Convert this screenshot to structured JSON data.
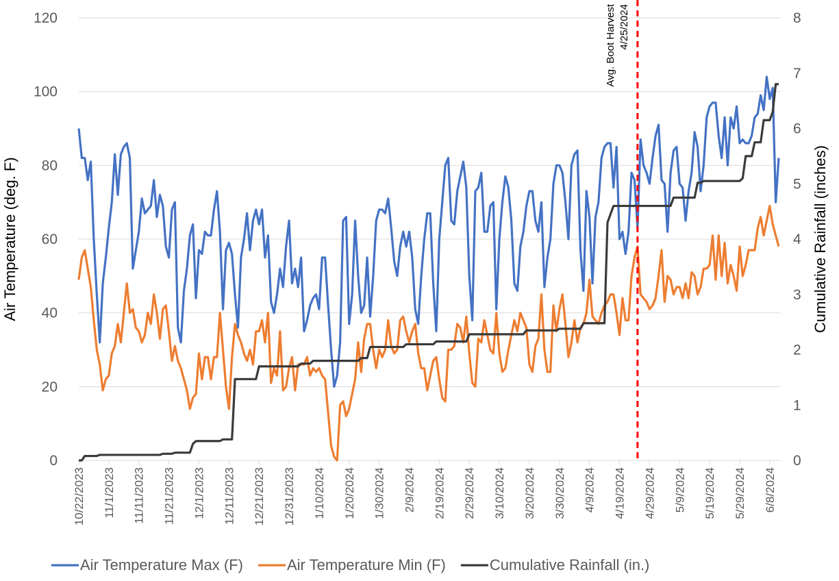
{
  "chart_data": {
    "type": "line",
    "categories": [
      "10/22/2023",
      null,
      null,
      null,
      null,
      null,
      null,
      null,
      null,
      null,
      "11/1/2023",
      null,
      null,
      null,
      null,
      null,
      null,
      null,
      null,
      null,
      "11/11/2023",
      null,
      null,
      null,
      null,
      null,
      null,
      null,
      null,
      null,
      "11/21/2023",
      null,
      null,
      null,
      null,
      null,
      null,
      null,
      null,
      null,
      "12/1/2023",
      null,
      null,
      null,
      null,
      null,
      null,
      null,
      null,
      null,
      "12/11/2023",
      null,
      null,
      null,
      null,
      null,
      null,
      null,
      null,
      null,
      "12/21/2023",
      null,
      null,
      null,
      null,
      null,
      null,
      null,
      null,
      null,
      "12/31/2023",
      null,
      null,
      null,
      null,
      null,
      null,
      null,
      null,
      null,
      "1/10/2024",
      null,
      null,
      null,
      null,
      null,
      null,
      null,
      null,
      null,
      "1/20/2024",
      null,
      null,
      null,
      null,
      null,
      null,
      null,
      null,
      null,
      "1/30/2024",
      null,
      null,
      null,
      null,
      null,
      null,
      null,
      null,
      null,
      "2/9/2024",
      null,
      null,
      null,
      null,
      null,
      null,
      null,
      null,
      null,
      "2/19/2024",
      null,
      null,
      null,
      null,
      null,
      null,
      null,
      null,
      null,
      "2/29/2024",
      null,
      null,
      null,
      null,
      null,
      null,
      null,
      null,
      null,
      "3/10/2024",
      null,
      null,
      null,
      null,
      null,
      null,
      null,
      null,
      null,
      "3/20/2024",
      null,
      null,
      null,
      null,
      null,
      null,
      null,
      null,
      null,
      "3/30/2024",
      null,
      null,
      null,
      null,
      null,
      null,
      null,
      null,
      null,
      "4/9/2024",
      null,
      null,
      null,
      null,
      null,
      null,
      null,
      null,
      null,
      "4/19/2024",
      null,
      null,
      null,
      null,
      null,
      null,
      null,
      null,
      null,
      "4/29/2024",
      null,
      null,
      null,
      null,
      null,
      null,
      null,
      null,
      null,
      "5/9/2024",
      null,
      null,
      null,
      null,
      null,
      null,
      null,
      null,
      null,
      "5/19/2024",
      null,
      null,
      null,
      null,
      null,
      null,
      null,
      null,
      null,
      "5/29/2024",
      null,
      null,
      null,
      null,
      null,
      null,
      null,
      null,
      null,
      "6/8/2024",
      null,
      null,
      null
    ],
    "series": [
      {
        "name": "Air Temperature Max (F)",
        "color": "#4472c4",
        "values": [
          90,
          82,
          82,
          76,
          81,
          60,
          45,
          32,
          48,
          55,
          63,
          70,
          83,
          72,
          83,
          85,
          86,
          82,
          52,
          57,
          62,
          71,
          67,
          68,
          69,
          76,
          66,
          72,
          69,
          58,
          55,
          68,
          70,
          36,
          32,
          46,
          52,
          61,
          64,
          44,
          57,
          56,
          62,
          61,
          61,
          68,
          73,
          62,
          41,
          57,
          59,
          56,
          45,
          36,
          55,
          60,
          67,
          57,
          65,
          68,
          64,
          68,
          55,
          61,
          43,
          40,
          45,
          52,
          47,
          58,
          65,
          48,
          52,
          47,
          55,
          35,
          38,
          42,
          44,
          45,
          41,
          55,
          55,
          42,
          30,
          20,
          23,
          32,
          65,
          66,
          37,
          45,
          65,
          50,
          40,
          42,
          55,
          39,
          50,
          65,
          68,
          68,
          67,
          71,
          63,
          54,
          50,
          58,
          62,
          58,
          62,
          55,
          41,
          37,
          50,
          60,
          67,
          67,
          48,
          35,
          60,
          70,
          80,
          82,
          65,
          64,
          73,
          77,
          81,
          74,
          50,
          38,
          73,
          74,
          78,
          62,
          62,
          69,
          70,
          41,
          60,
          70,
          77,
          74,
          65,
          48,
          46,
          58,
          62,
          69,
          73,
          73,
          65,
          62,
          70,
          47,
          55,
          60,
          75,
          80,
          80,
          78,
          70,
          60,
          80,
          83,
          84,
          57,
          46,
          73,
          66,
          48,
          66,
          70,
          82,
          85,
          86,
          86,
          74,
          85,
          60,
          62,
          56,
          62,
          78,
          76,
          63,
          87,
          80,
          78,
          75,
          82,
          88,
          91,
          76,
          75,
          62,
          78,
          84,
          85,
          75,
          74,
          65,
          73,
          78,
          89,
          85,
          73,
          80,
          93,
          96,
          97,
          97,
          88,
          82,
          93,
          80,
          93,
          90,
          96,
          86,
          87,
          86,
          86,
          88,
          93,
          94,
          99,
          95,
          104,
          98,
          101,
          70,
          82
        ]
      },
      {
        "name": "Air Temperature Min (F)",
        "color": "#ed7d31",
        "values": [
          49,
          55,
          57,
          52,
          47,
          38,
          30,
          26,
          19,
          22,
          23,
          29,
          31,
          37,
          32,
          40,
          48,
          40,
          41,
          36,
          35,
          32,
          34,
          40,
          37,
          45,
          40,
          33,
          41,
          42,
          35,
          27,
          31,
          27,
          25,
          22,
          19,
          14,
          17,
          18,
          29,
          22,
          28,
          28,
          22,
          28,
          28,
          40,
          30,
          20,
          14,
          28,
          37,
          34,
          32,
          29,
          27,
          30,
          26,
          35,
          35,
          38,
          32,
          40,
          21,
          25,
          23,
          35,
          19,
          20,
          25,
          28,
          19,
          26,
          26,
          26,
          28,
          23,
          25,
          24,
          25,
          23,
          22,
          13,
          4,
          1,
          0,
          15,
          16,
          12,
          14,
          18,
          22,
          32,
          24,
          33,
          37,
          37,
          30,
          25,
          30,
          28,
          30,
          38,
          31,
          29,
          30,
          38,
          39,
          35,
          32,
          35,
          37,
          29,
          25,
          25,
          19,
          23,
          27,
          28,
          22,
          17,
          16,
          30,
          30,
          31,
          37,
          36,
          32,
          39,
          29,
          21,
          20,
          33,
          32,
          38,
          34,
          30,
          29,
          40,
          29,
          24,
          25,
          30,
          34,
          38,
          35,
          40,
          38,
          36,
          26,
          24,
          31,
          33,
          45,
          30,
          24,
          24,
          42,
          35,
          41,
          45,
          37,
          28,
          32,
          38,
          32,
          36,
          37,
          40,
          49,
          39,
          38,
          37,
          40,
          42,
          43,
          45,
          45,
          40,
          34,
          44,
          38,
          38,
          50,
          55,
          58,
          45,
          44,
          43,
          41,
          42,
          44,
          50,
          57,
          43,
          50,
          49,
          45,
          47,
          47,
          44,
          48,
          44,
          51,
          50,
          45,
          47,
          52,
          52,
          53,
          61,
          49,
          61,
          50,
          59,
          48,
          53,
          50,
          46,
          58,
          50,
          53,
          57,
          57,
          57,
          63,
          66,
          61,
          65,
          69,
          64,
          61,
          58
        ]
      },
      {
        "name": "Cumulative Rainfall (in.)",
        "color": "#3a3a3a",
        "axis": "y2",
        "values": [
          0,
          0,
          0.08,
          0.08,
          0.08,
          0.08,
          0.08,
          0.1,
          0.1,
          0.1,
          0.1,
          0.1,
          0.1,
          0.1,
          0.1,
          0.1,
          0.1,
          0.1,
          0.1,
          0.1,
          0.1,
          0.1,
          0.1,
          0.1,
          0.1,
          0.1,
          0.1,
          0.1,
          0.12,
          0.12,
          0.12,
          0.12,
          0.14,
          0.14,
          0.14,
          0.14,
          0.14,
          0.14,
          0.3,
          0.35,
          0.35,
          0.35,
          0.35,
          0.35,
          0.35,
          0.35,
          0.35,
          0.35,
          0.38,
          0.38,
          0.38,
          0.38,
          1.47,
          1.47,
          1.47,
          1.47,
          1.47,
          1.47,
          1.47,
          1.47,
          1.7,
          1.7,
          1.7,
          1.7,
          1.7,
          1.7,
          1.7,
          1.7,
          1.7,
          1.7,
          1.7,
          1.7,
          1.7,
          1.7,
          1.75,
          1.75,
          1.75,
          1.75,
          1.8,
          1.8,
          1.8,
          1.8,
          1.8,
          1.8,
          1.8,
          1.8,
          1.8,
          1.8,
          1.8,
          1.8,
          1.8,
          1.8,
          1.8,
          1.8,
          1.85,
          1.85,
          1.85,
          2.05,
          2.05,
          2.05,
          2.05,
          2.05,
          2.05,
          2.05,
          2.05,
          2.05,
          2.05,
          2.05,
          2.05,
          2.1,
          2.1,
          2.1,
          2.1,
          2.1,
          2.1,
          2.1,
          2.1,
          2.1,
          2.1,
          2.15,
          2.15,
          2.15,
          2.15,
          2.15,
          2.15,
          2.15,
          2.15,
          2.15,
          2.15,
          2.15,
          2.28,
          2.28,
          2.28,
          2.28,
          2.28,
          2.28,
          2.28,
          2.28,
          2.28,
          2.28,
          2.28,
          2.28,
          2.28,
          2.28,
          2.28,
          2.28,
          2.28,
          2.28,
          2.28,
          2.35,
          2.35,
          2.35,
          2.35,
          2.35,
          2.35,
          2.35,
          2.35,
          2.35,
          2.35,
          2.35,
          2.38,
          2.38,
          2.38,
          2.38,
          2.38,
          2.38,
          2.38,
          2.38,
          2.48,
          2.48,
          2.48,
          2.48,
          2.48,
          2.48,
          2.48,
          2.48,
          4.3,
          4.45,
          4.6,
          4.6,
          4.6,
          4.6,
          4.6,
          4.6,
          4.6,
          4.6,
          4.6,
          4.6,
          4.6,
          4.6,
          4.6,
          4.6,
          4.6,
          4.6,
          4.6,
          4.6,
          4.6,
          4.6,
          4.75,
          4.75,
          4.75,
          4.75,
          4.75,
          4.75,
          4.75,
          4.75,
          5.02,
          5.02,
          5.05,
          5.05,
          5.05,
          5.05,
          5.05,
          5.05,
          5.05,
          5.05,
          5.05,
          5.05,
          5.05,
          5.05,
          5.05,
          5.1,
          5.5,
          5.5,
          5.5,
          5.75,
          5.75,
          5.75,
          6.15,
          6.15,
          6.15,
          6.3,
          6.8,
          6.8
        ]
      }
    ],
    "y_label": "Air Temperature (deg. F)",
    "y2_label": "Cumulative Rainfall (inches)",
    "ylim": [
      0,
      120
    ],
    "yticks": [
      0,
      20,
      40,
      60,
      80,
      100,
      120
    ],
    "y2lim": [
      0,
      8
    ],
    "y2ticks": [
      0,
      1,
      2,
      3,
      4,
      5,
      6,
      7,
      8
    ],
    "grid": true,
    "legend": "bottom",
    "annotation": {
      "lines": [
        "Avg. Boot Harvest",
        "4/25/2024"
      ],
      "date": "4/25/2024",
      "color": "#ff0000"
    }
  }
}
